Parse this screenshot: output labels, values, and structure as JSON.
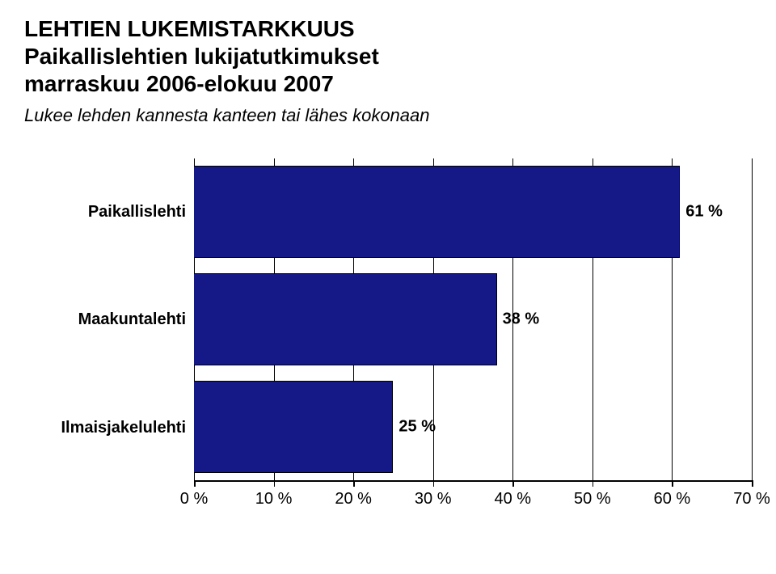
{
  "title_line1": "LEHTIEN LUKEMISTARKKUUS",
  "title_line2": "Paikallislehtien lukijatutkimukset",
  "title_line3": "marraskuu 2006-elokuu 2007",
  "description": "Lukee lehden kannesta kanteen tai lähes kokonaan",
  "chart": {
    "type": "bar",
    "orientation": "horizontal",
    "bar_color": "#151887",
    "bar_border_color": "#000000",
    "background_color": "#ffffff",
    "grid_color": "#000000",
    "xlim": [
      0,
      70
    ],
    "xtick_step": 10,
    "categories": [
      {
        "label": "Paikallislehti",
        "value": 61,
        "display": "61 %"
      },
      {
        "label": "Maakuntalehti",
        "value": 38,
        "display": "38 %"
      },
      {
        "label": "Ilmaisjakelulehti",
        "value": 25,
        "display": "25 %"
      }
    ],
    "xticks": [
      {
        "value": 0,
        "label": "0 %"
      },
      {
        "value": 10,
        "label": "10 %"
      },
      {
        "value": 20,
        "label": "20 %"
      },
      {
        "value": 30,
        "label": "30 %"
      },
      {
        "value": 40,
        "label": "40 %"
      },
      {
        "value": 50,
        "label": "50 %"
      },
      {
        "value": 60,
        "label": "60 %"
      },
      {
        "value": 70,
        "label": "70 %"
      }
    ]
  }
}
